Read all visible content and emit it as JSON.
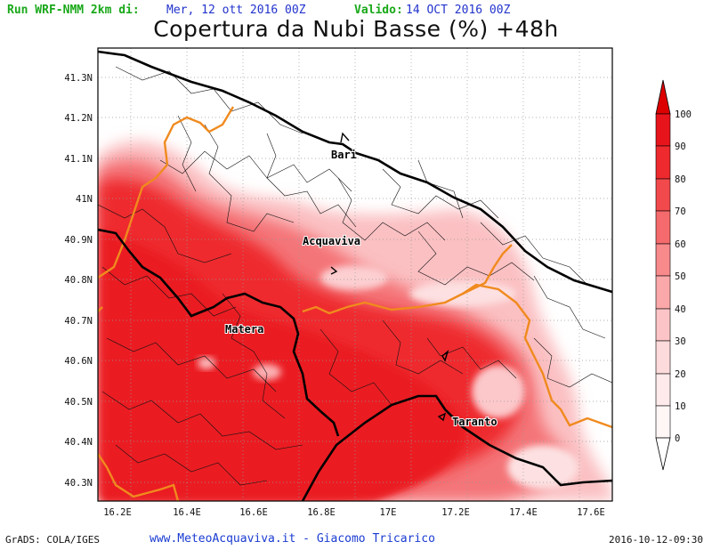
{
  "header": {
    "run_label": "Run WRF-NMM 2km di:",
    "run_date": "Mer, 12 ott 2016 00Z",
    "valid_label": "Valido:",
    "valid_date": "14 OCT 2016 00Z"
  },
  "title": "Copertura da Nubi Basse (%) +48h",
  "axes": {
    "lat_ticks": [
      "41.3N",
      "41.2N",
      "41.1N",
      "41N",
      "40.9N",
      "40.8N",
      "40.7N",
      "40.6N",
      "40.5N",
      "40.4N",
      "40.3N"
    ],
    "lon_ticks": [
      "16.2E",
      "16.4E",
      "16.6E",
      "16.8E",
      "17E",
      "17.2E",
      "17.4E",
      "17.6E"
    ]
  },
  "cities": [
    {
      "name": "Bari",
      "lon": 16.87,
      "lat": 41.12
    },
    {
      "name": "Acquaviva",
      "lon": 16.84,
      "lat": 40.9
    },
    {
      "name": "Matera",
      "lon": 16.6,
      "lat": 40.67
    },
    {
      "name": "Taranto",
      "lon": 17.24,
      "lat": 40.47
    }
  ],
  "colorbar": {
    "labels": [
      "100",
      "90",
      "80",
      "70",
      "60",
      "50",
      "40",
      "30",
      "20",
      "10",
      "0"
    ],
    "colors": [
      "#e8141c",
      "#ee2a2e",
      "#f24a4c",
      "#f56a6c",
      "#f88a8c",
      "#fba8aa",
      "#fcc4c6",
      "#fddadb",
      "#feeaeb",
      "#fff6f6"
    ],
    "top_arrow_color": "#dd0000",
    "bottom_arrow_color": "#ffffff"
  },
  "colors": {
    "cloud": "#ee2626",
    "region_border": "#f08a1e",
    "coastline": "#000000",
    "header_green": "#19a819",
    "header_blue": "#2233cc"
  },
  "footer": {
    "left": "GrADS: COLA/IGES",
    "center": "www.MeteoAcquaviva.it - Giacomo Tricarico",
    "right": "2016-10-12-09:30"
  }
}
